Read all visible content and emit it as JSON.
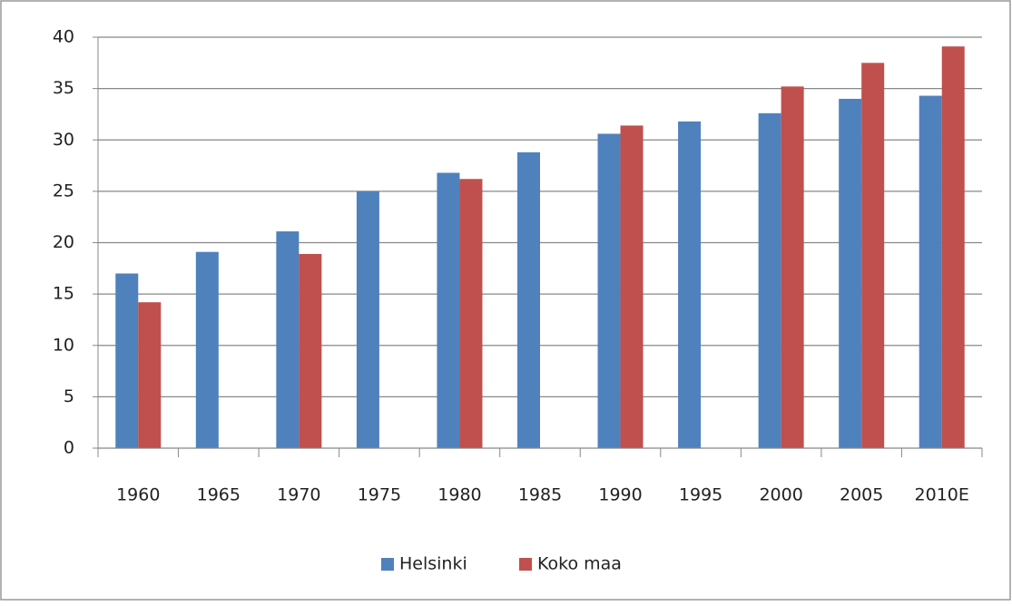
{
  "chart_data": {
    "type": "bar",
    "categories": [
      "1960",
      "1965",
      "1970",
      "1975",
      "1980",
      "1985",
      "1990",
      "1995",
      "2000",
      "2005",
      "2010E"
    ],
    "series": [
      {
        "name": "Helsinki",
        "color": "#4f81bd",
        "values": [
          17,
          19.1,
          21.1,
          25,
          26.8,
          28.8,
          30.6,
          31.8,
          32.6,
          34,
          34.3
        ]
      },
      {
        "name": "Koko maa",
        "color": "#c0504d",
        "values": [
          14.2,
          null,
          18.9,
          null,
          26.2,
          null,
          31.4,
          null,
          35.2,
          37.5,
          39.1
        ]
      }
    ],
    "ylim": [
      0,
      40
    ],
    "yticks": [
      0,
      5,
      10,
      15,
      20,
      25,
      30,
      35,
      40
    ],
    "grid": true,
    "legend": "bottom"
  }
}
